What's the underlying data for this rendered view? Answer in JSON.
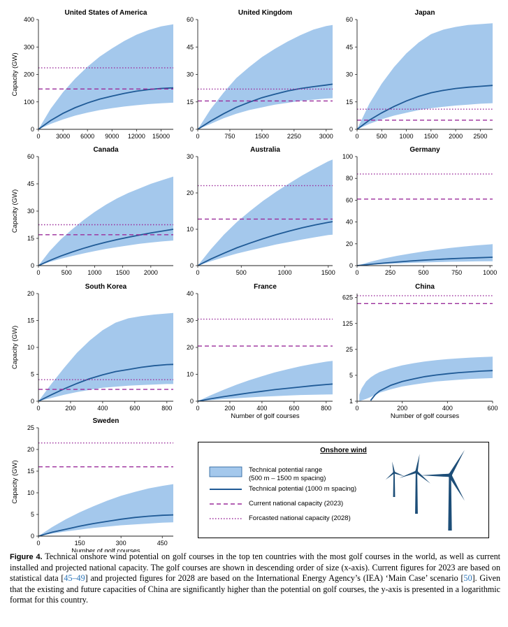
{
  "figure": {
    "colors": {
      "band": "#a4c8ec",
      "line": "#1f5a96",
      "current": "#9b2c9b",
      "forecast": "#9b2c9b",
      "turbine": "#1d4e78"
    },
    "x_axis_label": "Number of golf courses",
    "y_axis_label": "Capacity (GW)"
  },
  "legend": {
    "title": "Onshore wind",
    "items": [
      {
        "label": "Technical potential range",
        "label2": "(500 m – 1500 m spacing)",
        "symbol": "band"
      },
      {
        "label": "Technical potential (1000 m spacing)",
        "symbol": "line"
      },
      {
        "label": "Current national capacity (2023)",
        "symbol": "dashed"
      },
      {
        "label": "Forcasted national capacity (2028)",
        "symbol": "dotted"
      }
    ]
  },
  "caption": {
    "label": "Figure 4.",
    "part1": " Technical onshore wind potential on golf courses in the top ten countries with the most golf courses in the world, as well as current installed and projected national capacity. The golf courses are shown in descending order of size (x-axis). Current figures for 2023 are based on statistical data [",
    "ref1": "45–49",
    "part2": "] and projected figures for 2028 are based on the International Energy Agency’s (IEA) ‘Main Case’ scenario [",
    "ref2": "50",
    "part3": "]. Given that the existing and future capacities of China are significantly higher than the potential on golf courses, the y-axis is presented in a logarithmic format for this country."
  },
  "chart_data": [
    {
      "type": "area",
      "title": "United States of America",
      "xlim": [
        0,
        16500
      ],
      "ylim": [
        0,
        400
      ],
      "xticks": [
        0,
        3000,
        6000,
        9000,
        12000,
        15000
      ],
      "yticks": [
        0,
        100,
        200,
        300,
        400
      ],
      "x": [
        0,
        1500,
        3000,
        4500,
        6000,
        7500,
        9000,
        10500,
        12000,
        13500,
        15000,
        16500
      ],
      "range_low": [
        0,
        20,
        36,
        50,
        61,
        70,
        77,
        83,
        88,
        92,
        95,
        97
      ],
      "range_high": [
        0,
        75,
        135,
        185,
        228,
        265,
        295,
        322,
        345,
        362,
        375,
        383
      ],
      "potential": [
        0,
        32,
        58,
        79,
        96,
        110,
        121,
        131,
        139,
        145,
        149,
        151
      ],
      "current": 147,
      "forecast": 224,
      "xlabel": "",
      "ylabel": "Capacity (GW)"
    },
    {
      "type": "area",
      "title": "United Kingdom",
      "xlim": [
        0,
        3150
      ],
      "ylim": [
        0,
        60
      ],
      "xticks": [
        0,
        750,
        1500,
        2250,
        3000
      ],
      "yticks": [
        0,
        15,
        30,
        45,
        60
      ],
      "x": [
        0,
        300,
        600,
        900,
        1200,
        1500,
        1800,
        2100,
        2400,
        2700,
        3000,
        3150
      ],
      "range_low": [
        0,
        3,
        6,
        8.5,
        10.5,
        12,
        13.5,
        14.5,
        15.5,
        16.2,
        16.8,
        17
      ],
      "range_high": [
        0,
        11,
        20,
        28,
        34,
        39.5,
        44,
        48,
        51.5,
        54.5,
        56.5,
        57
      ],
      "potential": [
        0,
        4.5,
        8.5,
        12,
        14.8,
        17.3,
        19.2,
        21,
        22.3,
        23.3,
        24.2,
        24.7
      ],
      "current": 15.5,
      "forecast": 22,
      "xlabel": "",
      "ylabel": ""
    },
    {
      "type": "area",
      "title": "Japan",
      "xlim": [
        0,
        2750
      ],
      "ylim": [
        0,
        60
      ],
      "xticks": [
        0,
        500,
        1000,
        1500,
        2000,
        2500
      ],
      "yticks": [
        0,
        15,
        30,
        45,
        60
      ],
      "x": [
        0,
        250,
        500,
        750,
        1000,
        1250,
        1500,
        1750,
        2000,
        2250,
        2500,
        2750
      ],
      "range_low": [
        0,
        3,
        5.5,
        7.5,
        9,
        10.5,
        11.5,
        12.3,
        13,
        13.5,
        14,
        14.3
      ],
      "range_high": [
        0,
        14,
        25,
        34,
        41.5,
        47.5,
        52,
        54.5,
        56,
        57,
        57.5,
        58
      ],
      "potential": [
        0,
        5,
        9,
        12.5,
        15.5,
        18,
        20,
        21.3,
        22.3,
        23,
        23.5,
        24
      ],
      "current": 5,
      "forecast": 11,
      "xlabel": "",
      "ylabel": ""
    },
    {
      "type": "area",
      "title": "Canada",
      "xlim": [
        0,
        2400
      ],
      "ylim": [
        0,
        60
      ],
      "xticks": [
        0,
        500,
        1000,
        1500,
        2000
      ],
      "yticks": [
        0,
        15,
        30,
        45,
        60
      ],
      "x": [
        0,
        200,
        400,
        600,
        800,
        1000,
        1200,
        1400,
        1600,
        1800,
        2000,
        2200,
        2400
      ],
      "range_low": [
        0,
        2,
        3.8,
        5.3,
        6.7,
        8,
        9.2,
        10.2,
        11.1,
        12,
        12.7,
        13.3,
        13.8
      ],
      "range_high": [
        0,
        8,
        14.5,
        20,
        25,
        29.5,
        33.5,
        37,
        40,
        42.5,
        45,
        47,
        49
      ],
      "potential": [
        0,
        2.8,
        5.3,
        7.5,
        9.5,
        11.3,
        12.9,
        14.3,
        15.6,
        16.8,
        18,
        19,
        20
      ],
      "current": 17,
      "forecast": 22.5,
      "xlabel": "",
      "ylabel": "Capacity (GW)"
    },
    {
      "type": "area",
      "title": "Australia",
      "xlim": [
        0,
        1550
      ],
      "ylim": [
        0,
        30
      ],
      "xticks": [
        0,
        500,
        1000,
        1500
      ],
      "yticks": [
        0,
        10,
        20,
        30
      ],
      "x": [
        0,
        150,
        300,
        450,
        600,
        750,
        900,
        1050,
        1200,
        1350,
        1500,
        1550
      ],
      "range_low": [
        0,
        1.2,
        2.3,
        3.3,
        4.2,
        5,
        5.8,
        6.5,
        7.2,
        7.8,
        8.4,
        8.5
      ],
      "range_high": [
        0,
        4.5,
        8.5,
        12,
        15,
        17.8,
        20.3,
        22.6,
        24.8,
        26.8,
        28.7,
        29.2
      ],
      "potential": [
        0,
        1.8,
        3.4,
        4.9,
        6.2,
        7.4,
        8.5,
        9.5,
        10.4,
        11.2,
        11.9,
        12.1
      ],
      "current": 12.8,
      "forecast": 22,
      "xlabel": "",
      "ylabel": ""
    },
    {
      "type": "area",
      "title": "Germany",
      "xlim": [
        0,
        1020
      ],
      "ylim": [
        0,
        100
      ],
      "xticks": [
        0,
        250,
        500,
        750,
        1000
      ],
      "yticks": [
        0,
        20,
        40,
        60,
        80,
        100
      ],
      "x": [
        0,
        100,
        200,
        300,
        400,
        500,
        600,
        700,
        800,
        900,
        1000,
        1020
      ],
      "range_low": [
        0,
        0.8,
        1.5,
        2,
        2.5,
        2.9,
        3.2,
        3.5,
        3.7,
        3.9,
        4,
        4
      ],
      "range_high": [
        0,
        3.5,
        6.5,
        9,
        11,
        13,
        14.7,
        16.2,
        17.5,
        18.6,
        19.5,
        19.7
      ],
      "potential": [
        0,
        1.2,
        2.3,
        3.3,
        4.2,
        5,
        5.7,
        6.3,
        6.8,
        7.2,
        7.6,
        7.7
      ],
      "current": 61,
      "forecast": 84,
      "xlabel": "",
      "ylabel": ""
    },
    {
      "type": "area",
      "title": "South Korea",
      "xlim": [
        0,
        840
      ],
      "ylim": [
        0,
        20
      ],
      "xticks": [
        0,
        200,
        400,
        600,
        800
      ],
      "yticks": [
        0,
        5,
        10,
        15,
        20
      ],
      "x": [
        0,
        80,
        160,
        240,
        320,
        400,
        480,
        560,
        640,
        720,
        800,
        840
      ],
      "range_low": [
        0,
        0.6,
        1.2,
        1.7,
        2.1,
        2.5,
        2.7,
        2.9,
        3,
        3.1,
        3.2,
        3.2
      ],
      "range_high": [
        0,
        3.2,
        6.2,
        9,
        11.3,
        13.2,
        14.6,
        15.4,
        15.8,
        16.1,
        16.3,
        16.4
      ],
      "potential": [
        0,
        1.2,
        2.3,
        3.3,
        4.2,
        4.9,
        5.5,
        5.9,
        6.3,
        6.6,
        6.8,
        6.85
      ],
      "current": 2.2,
      "forecast": 4,
      "xlabel": "",
      "ylabel": "Capacity (GW)"
    },
    {
      "type": "area",
      "title": "France",
      "xlim": [
        0,
        840
      ],
      "ylim": [
        0,
        40
      ],
      "xticks": [
        0,
        200,
        400,
        600,
        800
      ],
      "yticks": [
        0,
        10,
        20,
        30,
        40
      ],
      "x": [
        0,
        80,
        160,
        240,
        320,
        400,
        480,
        560,
        640,
        720,
        800,
        840
      ],
      "range_low": [
        0,
        0.4,
        0.8,
        1.1,
        1.4,
        1.7,
        1.9,
        2.1,
        2.3,
        2.4,
        2.5,
        2.55
      ],
      "range_high": [
        0,
        2.2,
        4.2,
        6.1,
        7.8,
        9.3,
        10.7,
        11.9,
        13,
        13.9,
        14.7,
        15
      ],
      "potential": [
        0,
        0.9,
        1.7,
        2.4,
        3.1,
        3.7,
        4.3,
        4.8,
        5.3,
        5.8,
        6.2,
        6.4
      ],
      "current": 20.5,
      "forecast": 30.5,
      "xlabel": "Number of golf courses",
      "ylabel": ""
    },
    {
      "type": "area",
      "title": "China",
      "yscale": "log",
      "xlim": [
        0,
        600
      ],
      "ylim": [
        1,
        800
      ],
      "xticks": [
        0,
        200,
        400,
        600
      ],
      "yticks": [
        1,
        5,
        25,
        125,
        625
      ],
      "x": [
        10,
        20,
        40,
        60,
        80,
        100,
        150,
        200,
        250,
        300,
        350,
        400,
        450,
        500,
        550,
        600
      ],
      "range_low": [
        1,
        1.05,
        1.15,
        1.3,
        1.5,
        1.7,
        2.1,
        2.5,
        2.8,
        3.1,
        3.4,
        3.6,
        3.8,
        4,
        4.1,
        4.2
      ],
      "range_high": [
        1.5,
        2.2,
        3.4,
        4.4,
        5.3,
        6.1,
        7.8,
        9.3,
        10.6,
        11.8,
        12.8,
        13.7,
        14.4,
        15,
        15.5,
        15.9
      ],
      "potential": [
        null,
        null,
        null,
        1.05,
        1.5,
        1.9,
        2.7,
        3.4,
        4,
        4.6,
        5.1,
        5.5,
        5.9,
        6.2,
        6.5,
        6.7
      ],
      "current": 430,
      "forecast": 700,
      "xlabel": "Number of golf courses",
      "ylabel": ""
    },
    {
      "type": "area",
      "title": "Sweden",
      "xlim": [
        0,
        490
      ],
      "ylim": [
        0,
        25
      ],
      "xticks": [
        0,
        150,
        300,
        450
      ],
      "yticks": [
        0,
        5,
        10,
        15,
        20,
        25
      ],
      "x": [
        0,
        50,
        100,
        150,
        200,
        250,
        300,
        350,
        400,
        450,
        490
      ],
      "range_low": [
        0,
        0.6,
        1.1,
        1.5,
        1.9,
        2.2,
        2.5,
        2.7,
        2.9,
        3.1,
        3.2
      ],
      "range_high": [
        0,
        2.1,
        3.9,
        5.5,
        6.9,
        8.2,
        9.3,
        10.2,
        11,
        11.6,
        12
      ],
      "potential": [
        0,
        0.9,
        1.6,
        2.3,
        2.9,
        3.4,
        3.9,
        4.3,
        4.6,
        4.8,
        4.9
      ],
      "current": 16,
      "forecast": 21.5,
      "xlabel": "Number of golf courses",
      "ylabel": "Capacity (GW)"
    }
  ]
}
